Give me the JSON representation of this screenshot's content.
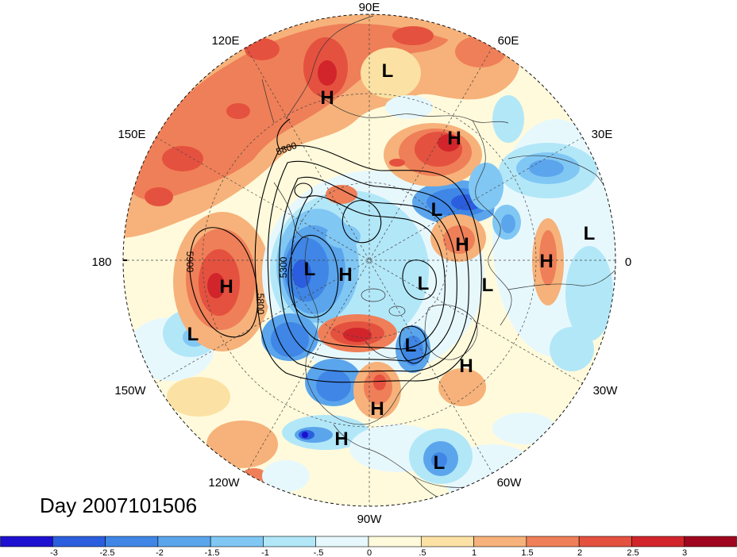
{
  "title": "Day 2007101506",
  "grid_labels": [
    "90E",
    "120E",
    "60E",
    "150E",
    "30E",
    "180",
    "0",
    "150W",
    "30W",
    "120W",
    "60W",
    "90W"
  ],
  "pressure_centers": [
    "L",
    "H",
    "H",
    "L",
    "H",
    "L",
    "L",
    "H",
    "L",
    "L",
    "H",
    "H",
    "L",
    "L",
    "H",
    "H",
    "H",
    "L"
  ],
  "contour_labels": [
    "5800",
    "5300",
    "5900",
    "5800"
  ],
  "colorbar": {
    "labels": [
      "-3",
      "-2.5",
      "-2",
      "-1.5",
      "-1",
      "-.5",
      "0",
      ".5",
      "1",
      "1.5",
      "2",
      "2.5",
      "3"
    ],
    "colors": [
      "#1e10d0",
      "#2b5ede",
      "#3f86e6",
      "#5ba5ec",
      "#80c7f4",
      "#b2e7f8",
      "#e7f8fd",
      "#fffadc",
      "#fbe2a4",
      "#f6b27a",
      "#ef7f58",
      "#e5513f",
      "#d1252b",
      "#a0061f"
    ]
  }
}
